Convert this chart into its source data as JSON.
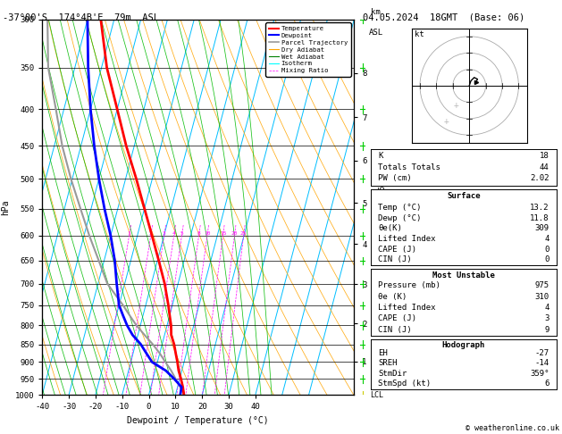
{
  "title_left": "-37°00'S  174°4B'E  79m  ASL",
  "title_right": "04.05.2024  18GMT  (Base: 06)",
  "xlabel": "Dewpoint / Temperature (°C)",
  "ylabel_left": "hPa",
  "pressure_levels": [
    300,
    350,
    400,
    450,
    500,
    550,
    600,
    650,
    700,
    750,
    800,
    850,
    900,
    950,
    1000
  ],
  "isotherm_color": "#00bfff",
  "dry_adiabat_color": "#ffa500",
  "wet_adiabat_color": "#00bb00",
  "mixing_ratio_color": "#ff00ff",
  "temp_color": "#ff0000",
  "dewp_color": "#0000ff",
  "parcel_color": "#999999",
  "temp_data_pressure": [
    1000,
    975,
    950,
    925,
    900,
    875,
    850,
    825,
    800,
    775,
    750,
    700,
    650,
    600,
    550,
    500,
    450,
    400,
    350,
    300
  ],
  "temp_data_temp": [
    13.2,
    12.0,
    10.5,
    8.8,
    7.5,
    6.0,
    4.5,
    2.5,
    1.5,
    0.0,
    -1.5,
    -5.0,
    -9.5,
    -14.5,
    -20.0,
    -26.0,
    -33.0,
    -40.0,
    -48.0,
    -55.0
  ],
  "dewp_data_pressure": [
    1000,
    975,
    950,
    925,
    900,
    875,
    850,
    825,
    800,
    775,
    750,
    700,
    650,
    600,
    550,
    500,
    450,
    400,
    350,
    300
  ],
  "dewp_data_temp": [
    11.8,
    11.5,
    8.0,
    4.0,
    -2.0,
    -5.0,
    -8.0,
    -12.0,
    -15.0,
    -17.5,
    -20.0,
    -23.0,
    -26.0,
    -30.0,
    -35.0,
    -40.0,
    -45.0,
    -50.0,
    -55.0,
    -60.0
  ],
  "parcel_data_pressure": [
    1000,
    975,
    950,
    925,
    900,
    875,
    850,
    825,
    800,
    775,
    750,
    700,
    650,
    600,
    550,
    500,
    450,
    400,
    350,
    300
  ],
  "parcel_data_temp": [
    13.2,
    11.0,
    8.5,
    6.0,
    3.0,
    0.0,
    -3.5,
    -7.5,
    -11.5,
    -15.0,
    -18.5,
    -26.5,
    -32.0,
    -38.0,
    -44.0,
    -50.5,
    -57.0,
    -63.0,
    -70.0,
    -75.0
  ],
  "mixing_ratio_lines": [
    1,
    2,
    3,
    4,
    5,
    8,
    10,
    15,
    20,
    25
  ],
  "km_ticks": [
    1,
    2,
    3,
    4,
    5,
    6,
    7,
    8
  ],
  "copyright": "© weatheronline.co.uk",
  "stats_rows_top": [
    [
      "K",
      "18"
    ],
    [
      "Totals Totals",
      "44"
    ],
    [
      "PW (cm)",
      "2.02"
    ]
  ],
  "stats_surface_title": "Surface",
  "stats_surface_rows": [
    [
      "Temp (°C)",
      "13.2"
    ],
    [
      "Dewp (°C)",
      "11.8"
    ],
    [
      "θe(K)",
      "309"
    ],
    [
      "Lifted Index",
      "4"
    ],
    [
      "CAPE (J)",
      "0"
    ],
    [
      "CIN (J)",
      "0"
    ]
  ],
  "stats_mu_title": "Most Unstable",
  "stats_mu_rows": [
    [
      "Pressure (mb)",
      "975"
    ],
    [
      "θe (K)",
      "310"
    ],
    [
      "Lifted Index",
      "4"
    ],
    [
      "CAPE (J)",
      "3"
    ],
    [
      "CIN (J)",
      "9"
    ]
  ],
  "stats_hodo_title": "Hodograph",
  "stats_hodo_rows": [
    [
      "EH",
      "-27"
    ],
    [
      "SREH",
      "-14"
    ],
    [
      "StmDir",
      "359°"
    ],
    [
      "StmSpd (kt)",
      "6"
    ]
  ]
}
